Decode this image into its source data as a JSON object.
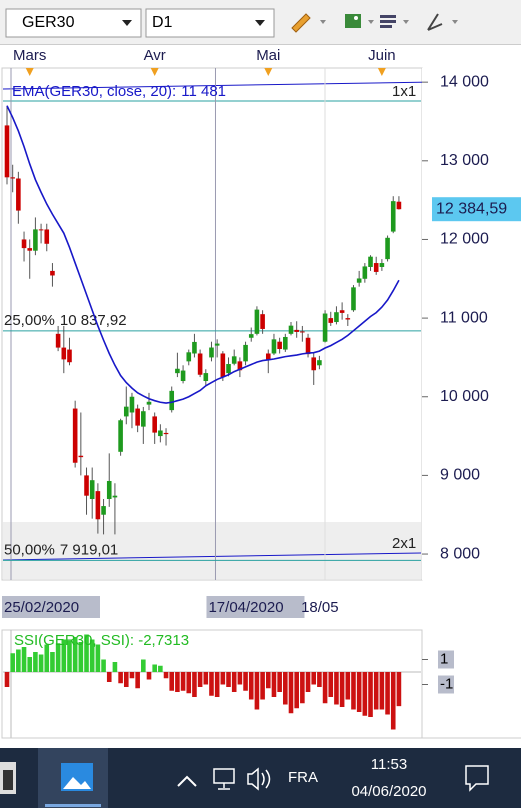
{
  "toolbar": {
    "symbol": "GER30",
    "timeframe": "D1"
  },
  "chart_data": [
    {
      "type": "candlestick",
      "categories": [
        "25/02/2020",
        null,
        null,
        null,
        null,
        null,
        null,
        null,
        null,
        null,
        null,
        null,
        null,
        null,
        null,
        null,
        null,
        null,
        null,
        null,
        null,
        null,
        null,
        null,
        null,
        null,
        null,
        null,
        null,
        null,
        null,
        null,
        null,
        null,
        null,
        null,
        "17/04/2020",
        null,
        null,
        null,
        null,
        null,
        null,
        null,
        null,
        null,
        null,
        null,
        null,
        null,
        null,
        null,
        null,
        null,
        null,
        null,
        "18/05",
        null,
        null,
        null,
        null,
        null,
        null,
        null,
        null,
        null,
        null,
        null,
        null,
        null
      ],
      "top_categories": [
        null,
        null,
        null,
        null,
        "Mars",
        null,
        null,
        null,
        null,
        null,
        null,
        null,
        null,
        null,
        null,
        null,
        null,
        null,
        null,
        null,
        null,
        null,
        null,
        null,
        null,
        null,
        "Avr",
        null,
        null,
        null,
        null,
        null,
        null,
        null,
        null,
        null,
        null,
        null,
        null,
        null,
        null,
        null,
        null,
        null,
        null,
        null,
        "Mai",
        null,
        null,
        null,
        null,
        null,
        null,
        null,
        null,
        null,
        null,
        null,
        null,
        null,
        null,
        null,
        null,
        null,
        null,
        null,
        "Juin",
        null,
        null,
        null
      ],
      "open": [
        13450,
        12790,
        12775,
        12000,
        11890,
        11857,
        12128,
        12127,
        11600,
        10800,
        10625,
        10600,
        9850,
        9250,
        9000,
        8700,
        8800,
        8500,
        8700,
        8720,
        9300,
        9750,
        9800,
        9850,
        9620,
        9900,
        9750,
        9500,
        9540,
        9830,
        10300,
        10200,
        10450,
        10550,
        10550,
        10200,
        10500,
        10650,
        10550,
        10300,
        10420,
        10450,
        10450,
        10750,
        10800,
        11050,
        10550,
        10550,
        10700,
        10600,
        10800,
        10850,
        10830,
        10750,
        10500,
        10400,
        10700,
        11000,
        10950,
        11100,
        11000,
        11100,
        11450,
        11500,
        11650,
        11700,
        11650,
        11750,
        12100,
        12480
      ],
      "high": [
        13700,
        12950,
        12860,
        12100,
        12000,
        12280,
        12200,
        12200,
        11700,
        10900,
        10900,
        10750,
        9950,
        9800,
        9100,
        9100,
        8900,
        8700,
        9280,
        8900,
        9720,
        10130,
        10050,
        9900,
        9870,
        10050,
        9800,
        9650,
        9600,
        10130,
        10560,
        10400,
        10600,
        10800,
        10600,
        10350,
        10700,
        10730,
        10580,
        10500,
        10600,
        10500,
        10700,
        10880,
        11150,
        11100,
        10600,
        10800,
        10750,
        10800,
        10950,
        10960,
        10900,
        10800,
        10550,
        10520,
        11100,
        11080,
        11150,
        11200,
        11050,
        11420,
        11600,
        11700,
        11800,
        11780,
        11750,
        12050,
        12550,
        12550
      ],
      "low": [
        12700,
        12600,
        12200,
        11720,
        11500,
        11800,
        11950,
        11850,
        11400,
        10580,
        10300,
        10400,
        9100,
        9000,
        8500,
        8450,
        8260,
        8250,
        8600,
        8250,
        9250,
        9650,
        9600,
        9550,
        9400,
        9830,
        9400,
        9420,
        9380,
        9800,
        10250,
        10170,
        10400,
        10500,
        10250,
        10150,
        10450,
        10500,
        10200,
        10260,
        10400,
        10250,
        10400,
        10700,
        10780,
        10800,
        10300,
        10530,
        10550,
        10570,
        10780,
        10750,
        10700,
        10500,
        10150,
        10350,
        10690,
        10900,
        10920,
        10980,
        10900,
        11080,
        11400,
        11450,
        11600,
        11550,
        11600,
        11720,
        12080,
        12380
      ],
      "close": [
        12790,
        12775,
        12367,
        11890,
        11857,
        12128,
        12127,
        11945,
        11542,
        10625,
        10475,
        10439,
        9161,
        9232,
        8742,
        8939,
        8442,
        8610,
        8929,
        8742,
        9701,
        9874,
        10000,
        9633,
        9816,
        9936,
        9544,
        9571,
        9525,
        10075,
        10356,
        10333,
        10565,
        10697,
        10280,
        10301,
        10626,
        10676,
        10250,
        10416,
        10514,
        10337,
        10659,
        10796,
        11108,
        10862,
        10467,
        10730,
        10607,
        10760,
        10904,
        10824,
        10819,
        10542,
        10337,
        10465,
        11058,
        10939,
        11075,
        11066,
        10982,
        11391,
        11504,
        11657,
        11781,
        11587,
        11700,
        12021,
        12487,
        12384.59
      ],
      "last_price_label": "12 384,59",
      "series": [
        {
          "name": "EMA(GER30, close, 20):",
          "color": "#1818c8",
          "value_label": "11 481",
          "values": [
            13700,
            13550,
            13380,
            13180,
            12960,
            12760,
            12600,
            12450,
            12320,
            12200,
            12080,
            11900,
            11700,
            11500,
            11300,
            11100,
            10900,
            10720,
            10550,
            10400,
            10270,
            10180,
            10110,
            10050,
            10010,
            9975,
            9950,
            9930,
            9920,
            9930,
            9950,
            9970,
            10000,
            10040,
            10080,
            10140,
            10180,
            10220,
            10250,
            10280,
            10320,
            10350,
            10380,
            10410,
            10440,
            10460,
            10470,
            10480,
            10495,
            10510,
            10520,
            10530,
            10545,
            10555,
            10560,
            10580,
            10620,
            10650,
            10690,
            10730,
            10780,
            10840,
            10900,
            10960,
            11020,
            11070,
            11140,
            11230,
            11350,
            11481
          ]
        }
      ],
      "levels": [
        {
          "label": "25,00%",
          "value": 10837.92,
          "value_label": "10 837,92"
        },
        {
          "label": "50,00%",
          "value": 7919.01,
          "value_label": "7 919,01"
        }
      ],
      "gann_labels": [
        "1x1",
        "2x1"
      ],
      "ylim": [
        7670,
        14180
      ],
      "yticks": [
        {
          "value": 8000,
          "label": "8 000"
        },
        {
          "value": 9000,
          "label": "9 000"
        },
        {
          "value": 10000,
          "label": "10 000"
        },
        {
          "value": 11000,
          "label": "11 000"
        },
        {
          "value": 12000,
          "label": "12 000"
        },
        {
          "value": 13000,
          "label": "13 000"
        },
        {
          "value": 14000,
          "label": "14 000"
        }
      ],
      "colors": {
        "up": "#1e9a1e",
        "down": "#cc0000"
      }
    },
    {
      "type": "bar",
      "title": "SSI(GER30, SSI): -2,7313",
      "values": [
        -1.2,
        1.5,
        1.8,
        2.0,
        1.2,
        1.6,
        1.4,
        2.2,
        1.6,
        2.3,
        2.6,
        2.5,
        2.8,
        2.4,
        3.0,
        2.6,
        2.2,
        1.0,
        -0.8,
        0.8,
        -0.9,
        -1.2,
        -0.5,
        -1.3,
        1.0,
        -0.6,
        0.6,
        0.5,
        -0.5,
        -1.5,
        -1.6,
        -1.5,
        -1.7,
        -2.0,
        -1.2,
        -1.0,
        -1.9,
        -2.0,
        -1.0,
        -1.2,
        -1.6,
        -1.0,
        -1.5,
        -2.2,
        -3.0,
        -2.2,
        -1.3,
        -2.0,
        -1.6,
        -2.6,
        -3.3,
        -2.9,
        -2.5,
        -1.6,
        -1.0,
        -1.2,
        -2.5,
        -2.0,
        -2.6,
        -2.8,
        -2.2,
        -3.0,
        -3.2,
        -3.5,
        -3.6,
        -3.0,
        -3.0,
        -3.4,
        -4.6,
        -2.7313
      ],
      "ylim": [
        -5.28,
        3.36
      ],
      "yticks": [
        1,
        -1
      ],
      "colors": {
        "up": "#33cc33",
        "down": "#cc1111"
      }
    }
  ],
  "taskbar": {
    "language": "FRA",
    "time": "11:53",
    "date": "04/06/2020"
  }
}
